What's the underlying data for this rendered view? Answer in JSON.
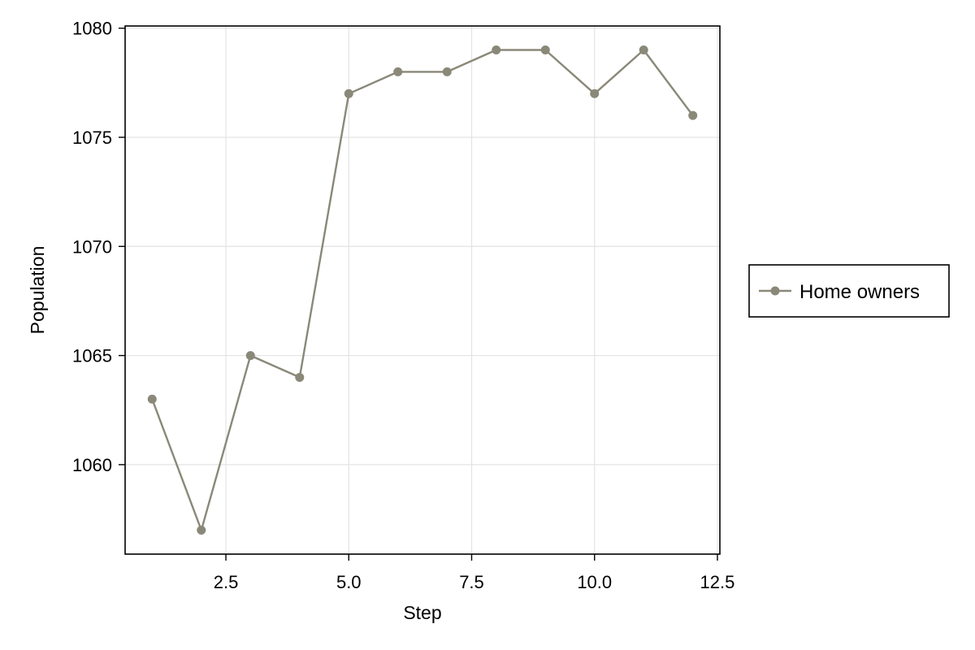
{
  "chart_data": {
    "type": "line",
    "title": "",
    "xlabel": "Step",
    "ylabel": "Population",
    "xlim": [
      0.45,
      12.55
    ],
    "ylim": [
      1055.9,
      1080.1
    ],
    "xticks": [
      2.5,
      5.0,
      7.5,
      10.0,
      12.5
    ],
    "xtick_labels": [
      "2.5",
      "5.0",
      "7.5",
      "10.0",
      "12.5"
    ],
    "yticks": [
      1060,
      1065,
      1070,
      1075,
      1080
    ],
    "ytick_labels": [
      "1060",
      "1065",
      "1070",
      "1075",
      "1080"
    ],
    "grid": true,
    "legend_position": "right",
    "series": [
      {
        "name": "Home owners",
        "color": "#8a8878",
        "x": [
          1,
          2,
          3,
          4,
          5,
          6,
          7,
          8,
          9,
          10,
          11,
          12
        ],
        "y": [
          1063,
          1057,
          1065,
          1064,
          1077,
          1078,
          1078,
          1079,
          1079,
          1077,
          1079,
          1076
        ]
      }
    ]
  }
}
